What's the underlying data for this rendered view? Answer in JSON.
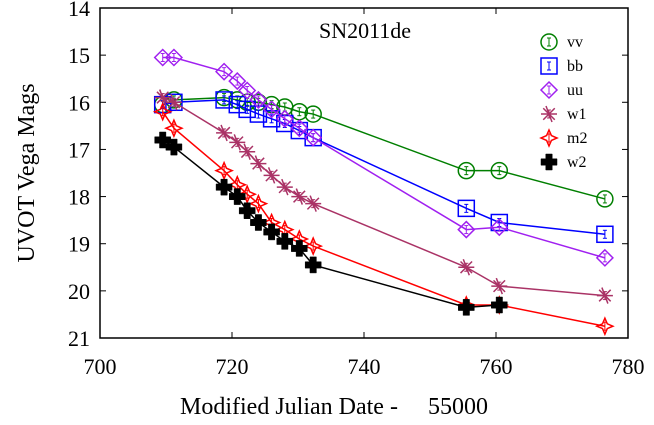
{
  "chart_data": {
    "type": "line",
    "title": "SN2011de",
    "xlabel": "Modified Julian Date -",
    "xlabel_offset": "55000",
    "ylabel": "UVOT Vega Mags",
    "xlim": [
      700,
      780
    ],
    "ylim": [
      14,
      21
    ],
    "y_inverted": true,
    "xticks": [
      700,
      720,
      740,
      760,
      780
    ],
    "yticks": [
      14,
      15,
      16,
      17,
      18,
      19,
      20,
      21
    ],
    "grid": false,
    "legend_position": "top-right",
    "series": [
      {
        "name": "vv",
        "color": "#007f00",
        "marker": "circle",
        "x": [
          709.5,
          711.2,
          718.8,
          720.8,
          722.3,
          724.0,
          726.0,
          728.0,
          730.2,
          732.3,
          755.5,
          760.5,
          776.5
        ],
        "y": [
          16.05,
          15.95,
          15.9,
          15.95,
          16.0,
          16.0,
          16.05,
          16.1,
          16.2,
          16.25,
          17.45,
          17.45,
          18.05
        ]
      },
      {
        "name": "bb",
        "color": "#0000ff",
        "marker": "square",
        "x": [
          709.5,
          711.2,
          718.8,
          720.8,
          722.3,
          724.0,
          726.0,
          728.0,
          730.2,
          732.3,
          755.5,
          760.5,
          776.5
        ],
        "y": [
          16.05,
          16.0,
          15.95,
          16.05,
          16.15,
          16.25,
          16.35,
          16.45,
          16.6,
          16.75,
          18.25,
          18.55,
          18.8
        ]
      },
      {
        "name": "uu",
        "color": "#a020f0",
        "marker": "diamond",
        "x": [
          709.5,
          711.2,
          718.8,
          720.8,
          722.3,
          724.0,
          726.0,
          728.0,
          730.2,
          732.3,
          755.5,
          760.5,
          776.5
        ],
        "y": [
          15.05,
          15.05,
          15.35,
          15.55,
          15.75,
          15.95,
          16.15,
          16.35,
          16.55,
          16.75,
          18.7,
          18.65,
          19.3
        ]
      },
      {
        "name": "w1",
        "color": "#aa3366",
        "marker": "asterisk",
        "x": [
          709.5,
          711.2,
          718.8,
          720.8,
          722.3,
          724.0,
          726.0,
          728.0,
          730.2,
          732.3,
          755.5,
          760.5,
          776.5
        ],
        "y": [
          15.9,
          16.0,
          16.65,
          16.85,
          17.05,
          17.3,
          17.55,
          17.8,
          18.0,
          18.15,
          19.5,
          19.9,
          20.1
        ]
      },
      {
        "name": "m2",
        "color": "#ff0000",
        "marker": "star4",
        "x": [
          709.5,
          711.2,
          718.8,
          720.8,
          722.3,
          724.0,
          726.0,
          728.0,
          730.2,
          732.3,
          755.5,
          760.5,
          776.5
        ],
        "y": [
          16.2,
          16.55,
          17.45,
          17.75,
          17.95,
          18.15,
          18.55,
          18.7,
          18.9,
          19.05,
          20.3,
          20.3,
          20.75
        ]
      },
      {
        "name": "w2",
        "color": "#000000",
        "marker": "plus",
        "x": [
          709.5,
          711.2,
          718.8,
          720.8,
          722.3,
          724.0,
          726.0,
          728.0,
          730.2,
          732.3,
          755.5,
          760.5
        ],
        "y": [
          16.8,
          16.95,
          17.8,
          18.0,
          18.3,
          18.55,
          18.75,
          18.95,
          19.1,
          19.45,
          20.35,
          20.3
        ]
      }
    ]
  }
}
